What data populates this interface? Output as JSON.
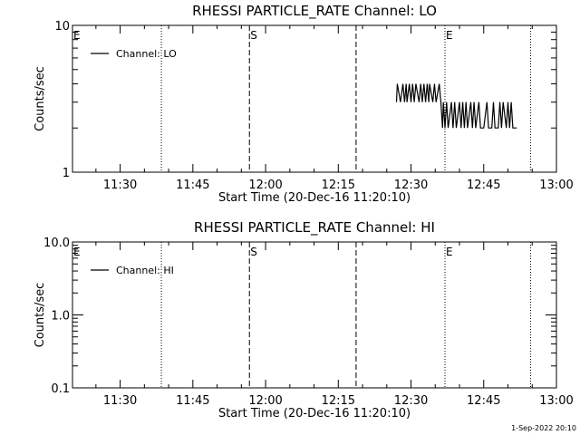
{
  "chart_data": [
    {
      "type": "line",
      "title": "RHESSI PARTICLE_RATE Channel: LO",
      "xlabel": "Start Time (20-Dec-16 11:20:10)",
      "ylabel": "Counts/sec",
      "x_ticks": [
        "11:30",
        "11:45",
        "12:00",
        "12:15",
        "12:30",
        "12:45",
        "13:00"
      ],
      "xlim": [
        "11:20:10",
        "13:00:00"
      ],
      "y_scale": "log",
      "ylim": [
        1,
        10
      ],
      "y_ticks": [
        "1",
        "10"
      ],
      "grid": false,
      "legend_position": "top-left",
      "series": [
        {
          "name": "Channel: LO",
          "color": "#000000",
          "x": [
            "12:27:00",
            "12:27:10",
            "12:27:50",
            "12:28:20",
            "12:28:40",
            "12:29:00",
            "12:29:10",
            "12:29:40",
            "12:30:00",
            "12:30:20",
            "12:30:40",
            "12:31:00",
            "12:31:40",
            "12:32:00",
            "12:32:20",
            "12:32:40",
            "12:33:00",
            "12:33:20",
            "12:33:40",
            "12:33:50",
            "12:34:30",
            "12:34:50",
            "12:35:10",
            "12:35:50",
            "12:36:10",
            "12:36:30",
            "12:36:40",
            "12:37:00",
            "12:37:20",
            "12:37:40",
            "12:38:20",
            "12:38:40",
            "12:39:00",
            "12:39:20",
            "12:40:00",
            "12:40:20",
            "12:40:40",
            "12:41:00",
            "12:41:20",
            "12:41:40",
            "12:42:20",
            "12:42:40",
            "12:43:00",
            "12:43:20",
            "12:44:00",
            "12:44:20",
            "12:44:40",
            "12:45:00",
            "12:45:40",
            "12:46:00",
            "12:46:40",
            "12:47:00",
            "12:47:20",
            "12:47:40",
            "12:48:00",
            "12:48:20",
            "12:48:40",
            "12:49:00",
            "12:49:40",
            "12:50:00",
            "12:50:20",
            "12:50:40",
            "12:51:00",
            "12:51:20",
            "12:51:50"
          ],
          "values": [
            3,
            4,
            3,
            4,
            3,
            4,
            3,
            4,
            3,
            4,
            3,
            4,
            3,
            4,
            3,
            4,
            3,
            4,
            3,
            4,
            3,
            4,
            3,
            4,
            3,
            2,
            3,
            2,
            3,
            2,
            3,
            2,
            3,
            2,
            3,
            2,
            3,
            2,
            3,
            2,
            3,
            2,
            3,
            2,
            3,
            2,
            2,
            2,
            3,
            2,
            2,
            3,
            2,
            2,
            2,
            3,
            2,
            3,
            2,
            3,
            2,
            3,
            2,
            2,
            2
          ]
        }
      ],
      "markers": [
        {
          "time": "11:20:10",
          "label": "E",
          "style": "dotted"
        },
        {
          "time": "11:38:30",
          "label": "",
          "style": "dotted"
        },
        {
          "time": "11:56:40",
          "label": "S",
          "style": "dashed"
        },
        {
          "time": "12:18:40",
          "label": "",
          "style": "dashed"
        },
        {
          "time": "12:37:00",
          "label": "E",
          "style": "dotted"
        },
        {
          "time": "12:54:40",
          "label": "",
          "style": "dotted"
        }
      ]
    },
    {
      "type": "line",
      "title": "RHESSI PARTICLE_RATE Channel: HI",
      "xlabel": "Start Time (20-Dec-16 11:20:10)",
      "ylabel": "Counts/sec",
      "x_ticks": [
        "11:30",
        "11:45",
        "12:00",
        "12:15",
        "12:30",
        "12:45",
        "13:00"
      ],
      "xlim": [
        "11:20:10",
        "13:00:00"
      ],
      "y_scale": "log",
      "ylim": [
        0.1,
        10
      ],
      "y_ticks": [
        "0.1",
        "1.0",
        "10.0"
      ],
      "grid": false,
      "legend_position": "top-left",
      "series": [
        {
          "name": "Channel: HI",
          "color": "#000000",
          "x": [],
          "values": []
        }
      ],
      "markers": [
        {
          "time": "11:20:10",
          "label": "E",
          "style": "dotted"
        },
        {
          "time": "11:38:30",
          "label": "",
          "style": "dotted"
        },
        {
          "time": "11:56:40",
          "label": "S",
          "style": "dashed"
        },
        {
          "time": "12:18:40",
          "label": "",
          "style": "dashed"
        },
        {
          "time": "12:37:00",
          "label": "E",
          "style": "dotted"
        },
        {
          "time": "12:54:40",
          "label": "",
          "style": "dotted"
        }
      ]
    }
  ],
  "footer": {
    "timestamp": "1-Sep-2022 20:10"
  }
}
